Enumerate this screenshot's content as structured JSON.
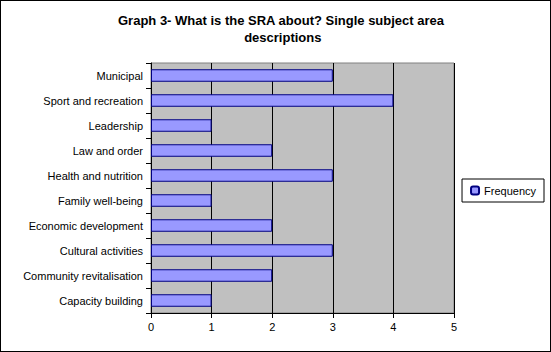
{
  "chart_data": {
    "type": "bar",
    "orientation": "horizontal",
    "title": "Graph 3- What is the SRA about? Single subject area descriptions",
    "categories": [
      "Capacity building",
      "Community revitalisation",
      "Cultural activities",
      "Economic development",
      "Family well-being",
      "Health and nutrition",
      "Law and order",
      "Leadership",
      "Sport and recreation",
      "Municipal"
    ],
    "series": [
      {
        "name": "Frequency",
        "color": "#9999ff",
        "values": [
          1,
          2,
          3,
          2,
          1,
          3,
          2,
          1,
          4,
          3
        ]
      }
    ],
    "xlim": [
      0,
      5
    ],
    "xticks": [
      0,
      1,
      2,
      3,
      4,
      5
    ],
    "grid": true,
    "legend": "right"
  }
}
